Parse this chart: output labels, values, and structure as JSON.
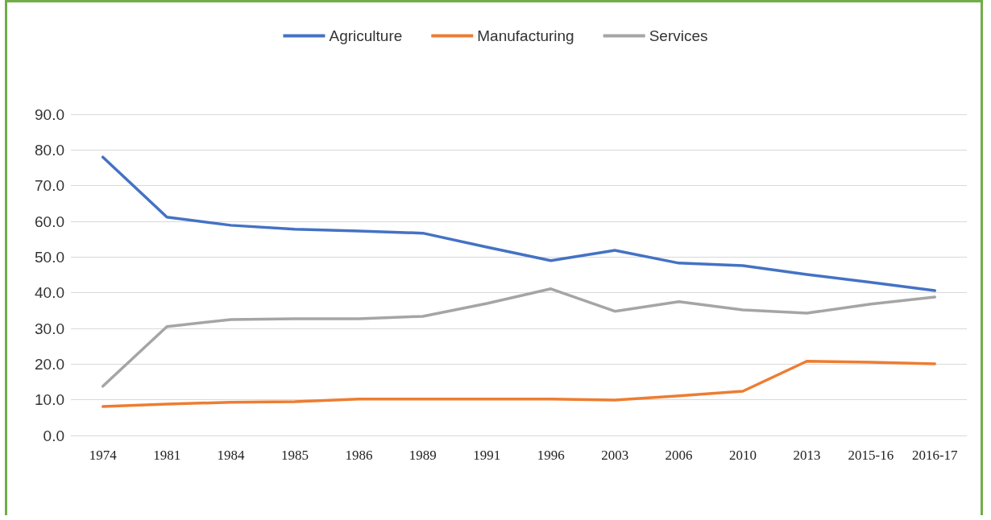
{
  "chart_data": {
    "type": "line",
    "categories": [
      "1974",
      "1981",
      "1984",
      "1985",
      "1986",
      "1989",
      "1991",
      "1996",
      "2003",
      "2006",
      "2010",
      "2013",
      "2015-16",
      "2016-17"
    ],
    "series": [
      {
        "name": "Agriculture",
        "color": "#4472c4",
        "values": [
          78.0,
          61.2,
          58.9,
          57.8,
          57.3,
          56.7,
          52.8,
          49.0,
          51.9,
          48.3,
          47.6,
          45.1,
          42.9,
          40.6
        ]
      },
      {
        "name": "Manufacturing",
        "color": "#ed7d31",
        "values": [
          8.1,
          8.8,
          9.3,
          9.5,
          10.2,
          10.2,
          10.2,
          10.2,
          9.9,
          11.1,
          12.4,
          20.8,
          20.5,
          20.1
        ]
      },
      {
        "name": "Services",
        "color": "#a5a5a5",
        "values": [
          13.8,
          30.5,
          32.5,
          32.7,
          32.7,
          33.4,
          37.0,
          41.1,
          34.8,
          37.5,
          35.2,
          34.3,
          36.8,
          38.8
        ]
      }
    ],
    "ylim": [
      0,
      90
    ],
    "yticks": [
      {
        "value": 0,
        "label": "0.0"
      },
      {
        "value": 10,
        "label": "10.0"
      },
      {
        "value": 20,
        "label": "20.0"
      },
      {
        "value": 30,
        "label": "30.0"
      },
      {
        "value": 40,
        "label": "40.0"
      },
      {
        "value": 50,
        "label": "50.0"
      },
      {
        "value": 60,
        "label": "60.0"
      },
      {
        "value": 70,
        "label": "70.0"
      },
      {
        "value": 80,
        "label": "80.0"
      },
      {
        "value": 90,
        "label": "90.0"
      }
    ],
    "grid": "y",
    "legend": "top",
    "marker": "none",
    "line_style": "solid"
  }
}
